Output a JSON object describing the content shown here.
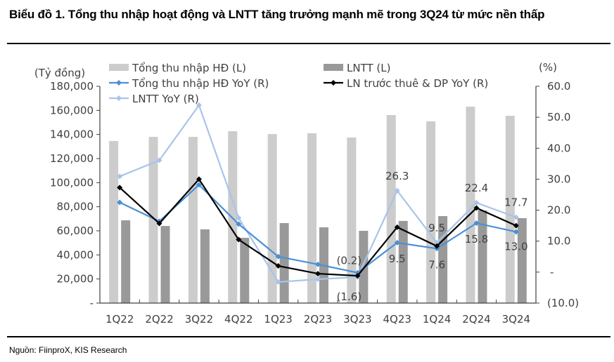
{
  "title": "Biểu đồ 1. Tổng thu nhập hoạt động và LNTT tăng trưởng mạnh mẽ trong 3Q24 từ mức nền thấp",
  "source": "Nguồn:  FiinproX, KIS Research",
  "chart_data": {
    "type": "bar+line",
    "title": "",
    "ylabel_left": "(Tỷ đồng)",
    "ylabel_right": "(%)",
    "ylim_left": [
      0,
      180000
    ],
    "ylim_right": [
      -10,
      60
    ],
    "yticks_left": [
      "-",
      "20,000",
      "40,000",
      "60,000",
      "80,000",
      "100,000",
      "120,000",
      "140,000",
      "160,000",
      "180,000"
    ],
    "yticks_right": [
      "(10.0)",
      "-",
      "10.0",
      "20.0",
      "30.0",
      "40.0",
      "50.0",
      "60.0"
    ],
    "grid": false,
    "legend_position": "top",
    "categories": [
      "1Q22",
      "2Q22",
      "3Q22",
      "4Q22",
      "1Q23",
      "2Q23",
      "3Q23",
      "4Q23",
      "1Q24",
      "2Q24",
      "3Q24"
    ],
    "series": [
      {
        "name": "Tổng thu nhập HĐ (L)",
        "type": "bar",
        "axis": "left",
        "color": "#cccccc",
        "values": [
          134600,
          138000,
          138000,
          142700,
          140300,
          141000,
          137500,
          156100,
          150900,
          163100,
          155500
        ]
      },
      {
        "name": "LNTT (L)",
        "type": "bar",
        "axis": "left",
        "color": "#999999",
        "values": [
          68700,
          64000,
          61200,
          54200,
          66400,
          62900,
          60000,
          68200,
          72200,
          76900,
          70500
        ]
      },
      {
        "name": "Tổng thu nhập HĐ YoY (R)",
        "type": "line",
        "axis": "right",
        "color": "#4a8fd6",
        "values": [
          22.5,
          16.4,
          28.2,
          15.5,
          5.0,
          2.5,
          -0.2,
          9.5,
          7.6,
          15.8,
          13.0
        ],
        "labels": [
          null,
          null,
          null,
          null,
          null,
          null,
          "(0.2)",
          "9.5",
          "7.6",
          "15.8",
          "13.0"
        ]
      },
      {
        "name": "LN trước thuê & DP YoY (R)",
        "type": "line",
        "axis": "right",
        "color": "#000000",
        "values": [
          27.3,
          15.7,
          30.0,
          10.5,
          2.0,
          -0.5,
          -1.2,
          14.5,
          8.4,
          20.7,
          15.0
        ]
      },
      {
        "name": "LNTT YoY (R)",
        "type": "line",
        "axis": "right",
        "color": "#a9c4ea",
        "values": [
          30.9,
          36.1,
          53.9,
          17.5,
          -3.2,
          -2.3,
          -1.6,
          26.3,
          9.5,
          22.4,
          17.7
        ],
        "labels": [
          null,
          null,
          null,
          null,
          null,
          null,
          "(1.6)",
          "26.3",
          "9.5",
          "22.4",
          "17.7"
        ]
      }
    ]
  }
}
